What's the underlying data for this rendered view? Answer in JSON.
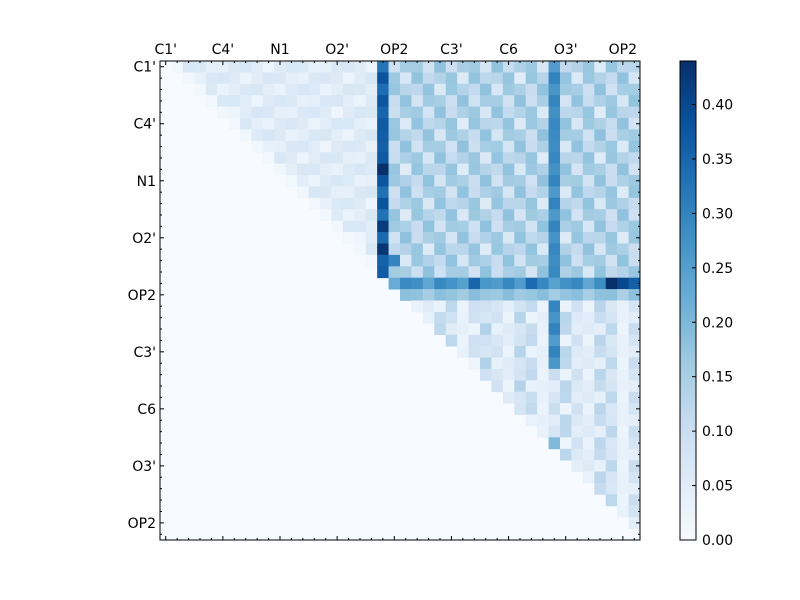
{
  "chart_data": {
    "type": "heatmap",
    "n": 42,
    "x_tick_labels": [
      "C1'",
      "C4'",
      "N1",
      "O2'",
      "OP2",
      "C3'",
      "C6",
      "O3'",
      "OP2"
    ],
    "y_tick_labels": [
      "C1'",
      "C4'",
      "N1",
      "O2'",
      "OP2",
      "C3'",
      "C6",
      "O3'",
      "OP2"
    ],
    "label_every": 5,
    "colormap": "Blues",
    "vmin": 0.0,
    "vmax": 0.44,
    "colorbar_ticks": [
      "0.00",
      "0.05",
      "0.10",
      "0.15",
      "0.20",
      "0.25",
      "0.30",
      "0.35",
      "0.40"
    ],
    "lower_triangle_value": 0.0,
    "hot_columns": [
      {
        "col": 19,
        "value": 0.38,
        "rows": [
          0,
          21
        ]
      },
      {
        "col": 34,
        "value": 0.3,
        "rows": [
          0,
          26
        ]
      }
    ],
    "hot_rows": [
      {
        "row": 19,
        "value": 0.28,
        "cols": [
          19,
          41
        ]
      },
      {
        "row": 20,
        "value": 0.18,
        "cols": [
          21,
          41
        ]
      }
    ],
    "peak_cells": [
      {
        "row": 19,
        "col": 39,
        "value": 0.44
      },
      {
        "row": 19,
        "col": 40,
        "value": 0.4
      },
      {
        "row": 19,
        "col": 41,
        "value": 0.36
      },
      {
        "row": 19,
        "col": 27,
        "value": 0.35
      },
      {
        "row": 19,
        "col": 32,
        "value": 0.34
      },
      {
        "row": 9,
        "col": 19,
        "value": 0.44
      },
      {
        "row": 14,
        "col": 19,
        "value": 0.42
      },
      {
        "row": 16,
        "col": 19,
        "value": 0.43
      },
      {
        "row": 17,
        "col": 20,
        "value": 0.3
      },
      {
        "row": 33,
        "col": 34,
        "value": 0.2
      }
    ]
  }
}
